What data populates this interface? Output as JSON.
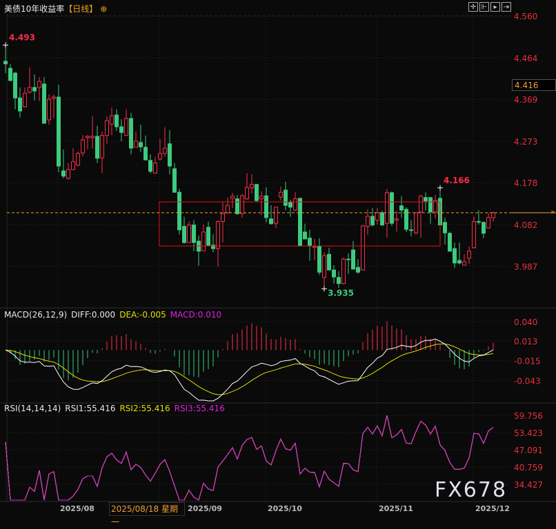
{
  "header": {
    "title": "美债10年收益率",
    "period": "【日线】",
    "add_icon": "circle-plus-icon"
  },
  "toolbar": [
    "crosshair-icon",
    "fit-left-icon",
    "play-right-icon",
    "shift-right-icon"
  ],
  "colors": {
    "up": "#ff2d4b",
    "down": "#3ccb7f",
    "axis_text": "#e8303a",
    "diff": "#ffffff",
    "dea": "#e0e000",
    "rsi": "#e020e0",
    "last_price": "#f0a030",
    "box": "#e81010"
  },
  "chart_data": [
    {
      "type": "candlestick",
      "y_ticks": [
        "4.560",
        "4.464",
        "4.369",
        "4.273",
        "4.178",
        "4.082",
        "3.987"
      ],
      "ylim": [
        3.92,
        4.56
      ],
      "highlight_price": "4.416",
      "last_price": 4.109,
      "annotations": [
        {
          "label": "4.493",
          "index": 0,
          "price": 4.493,
          "kind": "high"
        },
        {
          "label": "4.166",
          "index": 90,
          "price": 4.166,
          "kind": "high"
        },
        {
          "label": "3.935",
          "index": 66,
          "price": 3.935,
          "kind": "low"
        }
      ],
      "box": {
        "from_index": 32,
        "to_index": 90,
        "high": 4.134,
        "low": 4.033
      },
      "ohlc": [
        [
          4.456,
          4.493,
          4.429,
          4.45
        ],
        [
          4.44,
          4.45,
          4.41,
          4.412
        ],
        [
          4.429,
          4.431,
          4.346,
          4.372
        ],
        [
          4.372,
          4.396,
          4.327,
          4.342
        ],
        [
          4.352,
          4.396,
          4.35,
          4.383
        ],
        [
          4.385,
          4.442,
          4.382,
          4.396
        ],
        [
          4.396,
          4.426,
          4.366,
          4.388
        ],
        [
          4.396,
          4.42,
          4.365,
          4.41
        ],
        [
          4.404,
          4.42,
          4.314,
          4.314
        ],
        [
          4.322,
          4.38,
          4.311,
          4.369
        ],
        [
          4.371,
          4.38,
          4.325,
          4.374
        ],
        [
          4.374,
          4.402,
          4.202,
          4.216
        ],
        [
          4.205,
          4.254,
          4.188,
          4.193
        ],
        [
          4.188,
          4.223,
          4.185,
          4.208
        ],
        [
          4.208,
          4.257,
          4.207,
          4.226
        ],
        [
          4.218,
          4.249,
          4.215,
          4.245
        ],
        [
          4.246,
          4.287,
          4.238,
          4.276
        ],
        [
          4.281,
          4.287,
          4.254,
          4.284
        ],
        [
          4.281,
          4.33,
          4.256,
          4.284
        ],
        [
          4.284,
          4.308,
          4.223,
          4.234
        ],
        [
          4.235,
          4.295,
          4.2,
          4.286
        ],
        [
          4.286,
          4.33,
          4.267,
          4.32
        ],
        [
          4.312,
          4.35,
          4.287,
          4.331
        ],
        [
          4.333,
          4.346,
          4.297,
          4.306
        ],
        [
          4.306,
          4.323,
          4.273,
          4.293
        ],
        [
          4.286,
          4.346,
          4.286,
          4.325
        ],
        [
          4.325,
          4.338,
          4.243,
          4.257
        ],
        [
          4.259,
          4.295,
          4.259,
          4.273
        ],
        [
          4.27,
          4.311,
          4.248,
          4.26
        ],
        [
          4.259,
          4.286,
          4.229,
          4.23
        ],
        [
          4.229,
          4.243,
          4.199,
          4.204
        ],
        [
          4.2,
          4.237,
          4.2,
          4.223
        ],
        [
          4.232,
          4.278,
          4.229,
          4.245
        ],
        [
          4.245,
          4.305,
          4.237,
          4.257
        ],
        [
          4.267,
          4.298,
          4.197,
          4.216
        ],
        [
          4.21,
          4.223,
          4.155,
          4.156
        ],
        [
          4.156,
          4.164,
          4.059,
          4.07
        ],
        [
          4.078,
          4.1,
          4.038,
          4.041
        ],
        [
          4.041,
          4.089,
          4.04,
          4.081
        ],
        [
          4.081,
          4.092,
          4.021,
          4.041
        ],
        [
          4.044,
          4.057,
          3.988,
          4.021
        ],
        [
          4.022,
          4.082,
          4.022,
          4.065
        ],
        [
          4.076,
          4.089,
          4.032,
          4.035
        ],
        [
          4.035,
          4.06,
          4.019,
          4.027
        ],
        [
          4.027,
          4.092,
          3.986,
          4.089
        ],
        [
          4.089,
          4.133,
          4.041,
          4.107
        ],
        [
          4.109,
          4.144,
          4.106,
          4.126
        ],
        [
          4.142,
          4.155,
          4.12,
          4.147
        ],
        [
          4.141,
          4.15,
          4.104,
          4.107
        ],
        [
          4.107,
          4.152,
          4.098,
          4.148
        ],
        [
          4.141,
          4.2,
          4.139,
          4.167
        ],
        [
          4.166,
          4.197,
          4.153,
          4.174
        ],
        [
          4.174,
          4.175,
          4.134,
          4.137
        ],
        [
          4.141,
          4.158,
          4.104,
          4.147
        ],
        [
          4.148,
          4.167,
          4.087,
          4.098
        ],
        [
          4.095,
          4.126,
          4.082,
          4.084
        ],
        [
          4.085,
          4.123,
          4.074,
          4.122
        ],
        [
          4.145,
          4.169,
          4.137,
          4.156
        ],
        [
          4.161,
          4.18,
          4.115,
          4.126
        ],
        [
          4.133,
          4.139,
          4.1,
          4.122
        ],
        [
          4.115,
          4.156,
          4.112,
          4.141
        ],
        [
          4.142,
          4.144,
          4.033,
          4.033
        ],
        [
          4.065,
          4.084,
          4.049,
          4.049
        ],
        [
          4.051,
          4.07,
          3.999,
          4.033
        ],
        [
          4.03,
          4.049,
          4.0,
          4.032
        ],
        [
          4.032,
          4.051,
          3.967,
          3.973
        ],
        [
          3.961,
          4.018,
          3.935,
          4.011
        ],
        [
          4.014,
          4.029,
          3.978,
          3.978
        ],
        [
          3.978,
          3.989,
          3.947,
          3.962
        ],
        [
          3.961,
          3.975,
          3.937,
          3.947
        ],
        [
          3.947,
          4.007,
          3.945,
          4.003
        ],
        [
          4.003,
          4.016,
          3.969,
          4.002
        ],
        [
          4.024,
          4.044,
          3.98,
          3.98
        ],
        [
          3.984,
          4.003,
          3.969,
          3.973
        ],
        [
          3.978,
          4.081,
          3.977,
          4.079
        ],
        [
          4.078,
          4.117,
          4.059,
          4.101
        ],
        [
          4.101,
          4.12,
          4.078,
          4.081
        ],
        [
          4.092,
          4.12,
          4.082,
          4.109
        ],
        [
          4.109,
          4.114,
          4.079,
          4.081
        ],
        [
          4.085,
          4.163,
          4.052,
          4.155
        ],
        [
          4.155,
          4.158,
          4.079,
          4.085
        ],
        [
          4.092,
          4.114,
          4.066,
          4.095
        ],
        [
          4.125,
          4.147,
          4.098,
          4.115
        ],
        [
          4.117,
          4.122,
          4.065,
          4.071
        ],
        [
          4.07,
          4.092,
          4.055,
          4.069
        ],
        [
          4.063,
          4.111,
          4.059,
          4.109
        ],
        [
          4.111,
          4.15,
          4.052,
          4.147
        ],
        [
          4.144,
          4.156,
          4.114,
          4.136
        ],
        [
          4.144,
          4.144,
          4.084,
          4.111
        ],
        [
          4.111,
          4.15,
          4.096,
          4.137
        ],
        [
          4.142,
          4.166,
          4.081,
          4.081
        ],
        [
          4.087,
          4.098,
          4.036,
          4.063
        ],
        [
          4.062,
          4.066,
          4.021,
          4.021
        ],
        [
          4.027,
          4.041,
          3.983,
          3.994
        ],
        [
          4.0,
          4.041,
          3.991,
          3.994
        ],
        [
          3.989,
          4.014,
          3.989,
          3.997
        ],
        [
          4.005,
          4.032,
          3.992,
          4.021
        ],
        [
          4.029,
          4.101,
          4.027,
          4.089
        ],
        [
          4.089,
          4.115,
          4.082,
          4.088
        ],
        [
          4.087,
          4.089,
          4.051,
          4.062
        ],
        [
          4.074,
          4.109,
          4.073,
          4.098
        ],
        [
          4.098,
          4.112,
          4.089,
          4.109
        ]
      ]
    },
    {
      "type": "line",
      "indicator": "MACD",
      "label": "MACD(26,12,9)",
      "diff_label": "DIFF:0.000",
      "dea_label": "DEA:-0.005",
      "macd_label": "MACD:0.010",
      "params": {
        "long": 26,
        "short": 12,
        "signal": 9
      },
      "y_ticks": [
        "0.040",
        "0.013",
        "-0.015",
        "-0.043"
      ],
      "last": {
        "diff": 0.0,
        "dea": -0.005,
        "macd": 0.01
      }
    },
    {
      "type": "line",
      "indicator": "RSI",
      "label": "RSI(14,14,14)",
      "rsi1_label": "RSI1:55.416",
      "rsi2_label": "RSI2:55.416",
      "rsi3_label": "RSI3:55.416",
      "params": [
        14,
        14,
        14
      ],
      "y_ticks": [
        "59.756",
        "53.423",
        "47.091",
        "40.759",
        "34.427"
      ],
      "last": [
        55.416,
        55.416,
        55.416
      ]
    }
  ],
  "x_axis": {
    "ticks": [
      {
        "label": "2025/08",
        "index": 11
      },
      {
        "label": "2025/09",
        "index": 32
      },
      {
        "label": "2025/10",
        "index": 54
      },
      {
        "label": "2025/11",
        "index": 77
      },
      {
        "label": "2025/12",
        "index": 97
      }
    ],
    "crosshair_label": "2025/08/18 星期一"
  },
  "watermark": "FX678"
}
